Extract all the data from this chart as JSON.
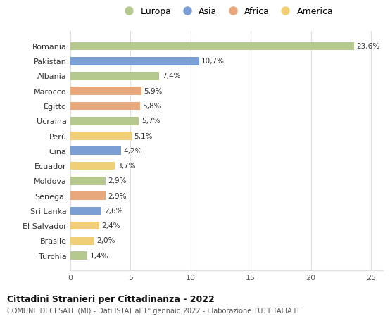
{
  "countries": [
    "Romania",
    "Pakistan",
    "Albania",
    "Marocco",
    "Egitto",
    "Ucraina",
    "Perù",
    "Cina",
    "Ecuador",
    "Moldova",
    "Senegal",
    "Sri Lanka",
    "El Salvador",
    "Brasile",
    "Turchia"
  ],
  "values": [
    23.6,
    10.7,
    7.4,
    5.9,
    5.8,
    5.7,
    5.1,
    4.2,
    3.7,
    2.9,
    2.9,
    2.6,
    2.4,
    2.0,
    1.4
  ],
  "labels": [
    "23,6%",
    "10,7%",
    "7,4%",
    "5,9%",
    "5,8%",
    "5,7%",
    "5,1%",
    "4,2%",
    "3,7%",
    "2,9%",
    "2,9%",
    "2,6%",
    "2,4%",
    "2,0%",
    "1,4%"
  ],
  "continents": [
    "Europa",
    "Asia",
    "Europa",
    "Africa",
    "Africa",
    "Europa",
    "America",
    "Asia",
    "America",
    "Europa",
    "Africa",
    "Asia",
    "America",
    "America",
    "Europa"
  ],
  "colors": {
    "Europa": "#b5c98e",
    "Asia": "#7b9fd4",
    "Africa": "#e8a87c",
    "America": "#f0cf76"
  },
  "legend_order": [
    "Europa",
    "Asia",
    "Africa",
    "America"
  ],
  "title": "Cittadini Stranieri per Cittadinanza - 2022",
  "subtitle": "COMUNE DI CESATE (MI) - Dati ISTAT al 1° gennaio 2022 - Elaborazione TUTTITALIA.IT",
  "xlim": [
    0,
    26
  ],
  "xticks": [
    0,
    5,
    10,
    15,
    20,
    25
  ],
  "bg_color": "#ffffff",
  "grid_color": "#e0e0e0"
}
